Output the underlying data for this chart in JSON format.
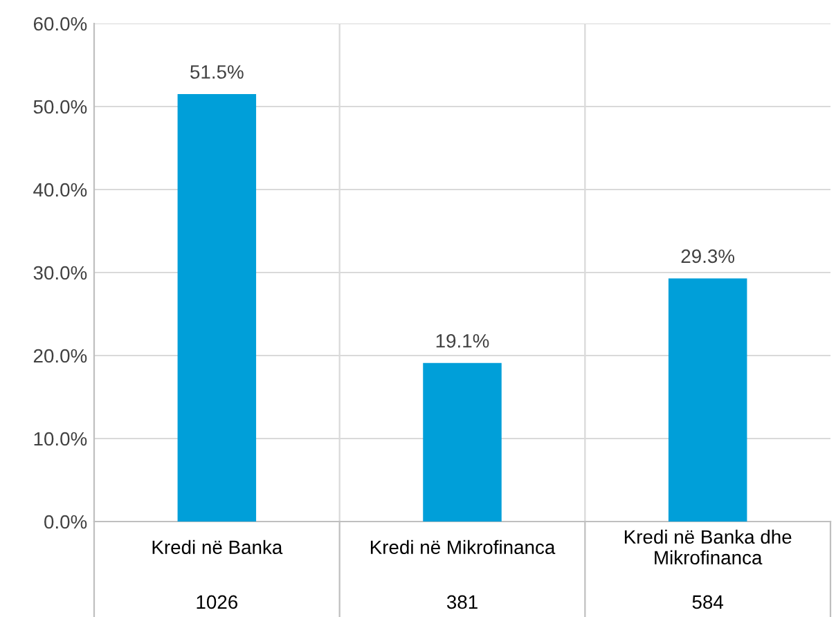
{
  "chart_data": {
    "type": "bar",
    "categories": [
      "Kredi në Banka",
      "Kredi në Mikrofinanca",
      "Kredi në Banka dhe Mikrofinanca"
    ],
    "values": [
      51.5,
      19.1,
      29.3
    ],
    "color": "#009fd9",
    "value_labels": [
      "51.5%",
      "19.1%",
      "29.3%"
    ],
    "annotations": [
      "1026",
      "381",
      "584"
    ],
    "ylim": [
      0,
      60
    ],
    "yticks": [
      {
        "value": 0,
        "label": "0.0%"
      },
      {
        "value": 10,
        "label": "10.0%"
      },
      {
        "value": 20,
        "label": "20.0%"
      },
      {
        "value": 30,
        "label": "30.0%"
      },
      {
        "value": 40,
        "label": "40.0%"
      },
      {
        "value": 50,
        "label": "50.0%"
      },
      {
        "value": 60,
        "label": "60.0%"
      }
    ],
    "grid": true,
    "legend": false
  }
}
